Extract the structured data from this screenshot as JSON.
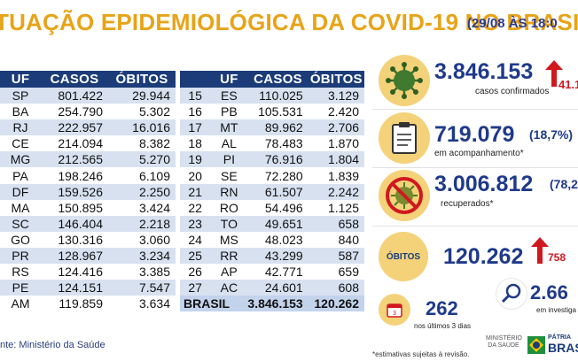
{
  "title": {
    "main": "TUAÇÃO EPIDEMIOLÓGICA DA COVID-19 NO BRASIL",
    "date": "(29/08 ÀS 18:0"
  },
  "table_left": {
    "headers": [
      "UF",
      "CASOS",
      "ÓBITOS"
    ],
    "rows": [
      [
        "SP",
        "801.422",
        "29.944"
      ],
      [
        "BA",
        "254.790",
        "5.302"
      ],
      [
        "RJ",
        "222.957",
        "16.016"
      ],
      [
        "CE",
        "214.094",
        "8.382"
      ],
      [
        "MG",
        "212.565",
        "5.270"
      ],
      [
        "PA",
        "198.246",
        "6.109"
      ],
      [
        "DF",
        "159.526",
        "2.250"
      ],
      [
        "MA",
        "150.895",
        "3.424"
      ],
      [
        "SC",
        "146.404",
        "2.218"
      ],
      [
        "GO",
        "130.316",
        "3.060"
      ],
      [
        "PR",
        "128.967",
        "3.234"
      ],
      [
        "RS",
        "124.416",
        "3.385"
      ],
      [
        "PE",
        "124.151",
        "7.547"
      ],
      [
        "AM",
        "119.859",
        "3.634"
      ]
    ]
  },
  "table_right": {
    "headers": [
      "",
      "UF",
      "CASOS",
      "ÓBITOS"
    ],
    "rows": [
      [
        "15",
        "ES",
        "110.025",
        "3.129"
      ],
      [
        "16",
        "PB",
        "105.531",
        "2.420"
      ],
      [
        "17",
        "MT",
        "89.962",
        "2.706"
      ],
      [
        "18",
        "AL",
        "78.483",
        "1.870"
      ],
      [
        "19",
        "PI",
        "76.916",
        "1.804"
      ],
      [
        "20",
        "SE",
        "72.280",
        "1.839"
      ],
      [
        "21",
        "RN",
        "61.507",
        "2.242"
      ],
      [
        "22",
        "RO",
        "54.496",
        "1.125"
      ],
      [
        "23",
        "TO",
        "49.651",
        "658"
      ],
      [
        "24",
        "MS",
        "48.023",
        "840"
      ],
      [
        "25",
        "RR",
        "43.299",
        "587"
      ],
      [
        "26",
        "AP",
        "42.771",
        "659"
      ],
      [
        "27",
        "AC",
        "24.601",
        "608"
      ]
    ],
    "total": {
      "label": "BRASIL",
      "casos": "3.846.153",
      "obitos": "120.262"
    }
  },
  "stats": {
    "confirmed": {
      "value": "3.846.153",
      "label": "casos confirmados",
      "delta": "41.1"
    },
    "monitoring": {
      "value": "719.079",
      "pct": "(18,7%)",
      "label": "em acompanhamento*"
    },
    "recovered": {
      "value": "3.006.812",
      "pct": "(78,2",
      "label": "recuperados*"
    },
    "deaths": {
      "badge": "ÓBITOS",
      "value": "120.262",
      "delta": "758"
    },
    "recent": {
      "value": "262",
      "label": "nos últimos 3 dias"
    },
    "investigation": {
      "value": "2.66",
      "label": "em investiga"
    }
  },
  "footer": {
    "source": "nte: Ministério da Saúde",
    "note": "*estimativas sujeitas à revisão.",
    "ministry": "MINISTÉRIO DA SAÚDE",
    "patria_line1": "PÁTRIA",
    "patria_line2": "BRAS"
  },
  "colors": {
    "header": "#1B3C78",
    "accent": "#E8A317",
    "stat_blue": "#1F3A8A",
    "up_red": "#D0181F",
    "circle": "#F4D27A"
  }
}
